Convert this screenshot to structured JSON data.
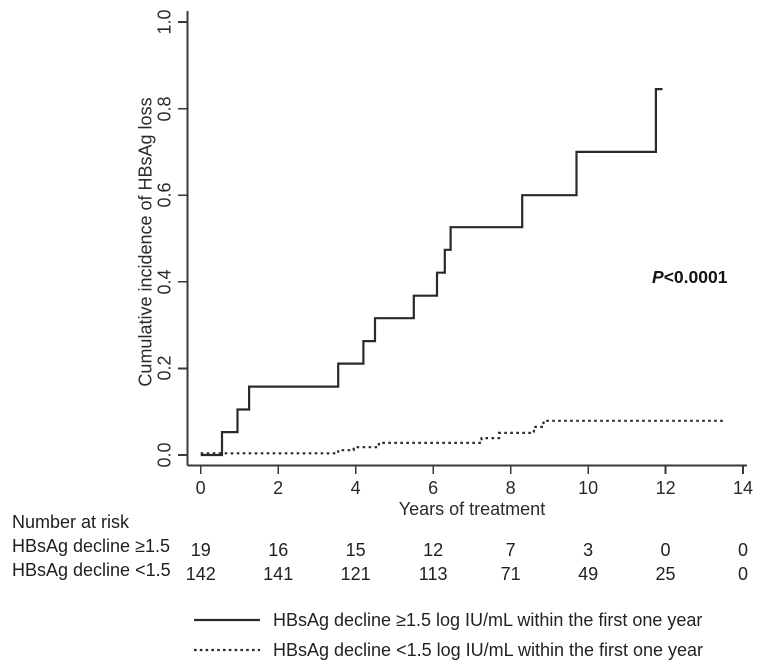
{
  "chart_data": {
    "type": "line",
    "variant": "kaplan-meier-cumulative-incidence-step",
    "title": "",
    "xlabel": "Years of treatment",
    "ylabel": "Cumulative incidence of HBsAg loss",
    "xlim": [
      0,
      14
    ],
    "ylim": [
      0,
      1
    ],
    "grid": false,
    "x_ticks": [
      "0",
      "2",
      "4",
      "6",
      "8",
      "10",
      "12",
      "14"
    ],
    "y_ticks": [
      "0.0",
      "0.2",
      "0.4",
      "0.6",
      "0.8",
      "1.0"
    ],
    "annotation": {
      "italic_part": "P",
      "rest": "<0.0001",
      "full_text": "P<0.0001"
    },
    "line_color": "#2a2a2a",
    "series": [
      {
        "name": "HBsAg decline ≥1.5 log IU/mL within the first one year",
        "line_style": "solid",
        "points": [
          [
            0,
            0
          ],
          [
            0.55,
            0.053
          ],
          [
            0.95,
            0.105
          ],
          [
            1.25,
            0.158
          ],
          [
            3.55,
            0.211
          ],
          [
            4.2,
            0.263
          ],
          [
            4.5,
            0.316
          ],
          [
            5.5,
            0.368
          ],
          [
            6.1,
            0.421
          ],
          [
            6.3,
            0.474
          ],
          [
            6.45,
            0.526
          ],
          [
            8.3,
            0.6
          ],
          [
            9.7,
            0.7
          ],
          [
            11.75,
            0.845
          ]
        ],
        "end_x": 11.92
      },
      {
        "name": "HBsAg decline <1.5 log IU/mL within the first one year",
        "line_style": "dotted",
        "points": [
          [
            0,
            0.004
          ],
          [
            3.55,
            0.011
          ],
          [
            3.95,
            0.018
          ],
          [
            4.6,
            0.028
          ],
          [
            7.25,
            0.039
          ],
          [
            7.7,
            0.051
          ],
          [
            8.6,
            0.065
          ],
          [
            8.85,
            0.079
          ]
        ],
        "end_x": 13.5
      }
    ]
  },
  "number_at_risk": {
    "title": "Number at risk",
    "time_points": [
      "0",
      "2",
      "4",
      "6",
      "8",
      "10",
      "12",
      "14"
    ],
    "rows": [
      {
        "label": "HBsAg decline ≥1.5",
        "values": [
          "19",
          "16",
          "15",
          "12",
          "7",
          "3",
          "0",
          "0"
        ]
      },
      {
        "label": "HBsAg decline <1.5",
        "values": [
          "142",
          "141",
          "121",
          "113",
          "71",
          "49",
          "25",
          "0"
        ]
      }
    ]
  }
}
